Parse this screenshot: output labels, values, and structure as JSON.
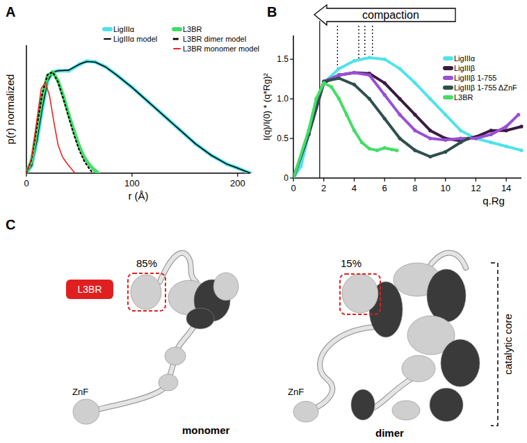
{
  "chart_data": [
    {
      "type": "line",
      "panel": "A",
      "xlabel": "r (Å)",
      "ylabel": "p(r) normalized",
      "xlim": [
        0,
        212
      ],
      "ylim": [
        0,
        1
      ],
      "xticks": [
        0,
        100,
        200
      ],
      "tick_labels": "x",
      "legend": "upper right",
      "series": [
        {
          "name": "LigIIIα",
          "color": "#4fe3ea",
          "marker": "circle",
          "x": [
            0,
            5,
            10,
            15,
            20,
            25,
            30,
            40,
            50,
            57,
            65,
            75,
            85,
            100,
            115,
            130,
            145,
            160,
            175,
            190,
            200,
            212
          ],
          "values": [
            0,
            0.06,
            0.25,
            0.5,
            0.72,
            0.79,
            0.8,
            0.8,
            0.85,
            0.875,
            0.87,
            0.83,
            0.77,
            0.67,
            0.56,
            0.45,
            0.34,
            0.23,
            0.14,
            0.07,
            0.04,
            0
          ]
        },
        {
          "name": "LigIIIα model",
          "color": "#000000",
          "line_style": "solid",
          "x": [
            0,
            5,
            10,
            15,
            20,
            25,
            30,
            40,
            50,
            57,
            65,
            75,
            85,
            100,
            115,
            130,
            145,
            160,
            175,
            190,
            200,
            212
          ],
          "values": [
            0,
            0.06,
            0.26,
            0.51,
            0.72,
            0.79,
            0.8,
            0.805,
            0.85,
            0.872,
            0.868,
            0.83,
            0.77,
            0.67,
            0.56,
            0.45,
            0.34,
            0.23,
            0.14,
            0.07,
            0.04,
            0
          ]
        },
        {
          "name": "L3BR",
          "color": "#44dd66",
          "marker": "circle",
          "x": [
            0,
            5,
            10,
            15,
            20,
            25,
            30,
            35,
            40,
            45,
            50,
            55,
            60,
            65,
            68
          ],
          "values": [
            0,
            0.1,
            0.35,
            0.6,
            0.76,
            0.79,
            0.72,
            0.6,
            0.46,
            0.33,
            0.21,
            0.12,
            0.06,
            0.02,
            0
          ]
        },
        {
          "name": "L3BR dimer model",
          "color": "#000000",
          "line_style": "dotted",
          "x": [
            0,
            5,
            10,
            15,
            20,
            25,
            30,
            35,
            40,
            45,
            50,
            55,
            60,
            63
          ],
          "values": [
            0,
            0.11,
            0.37,
            0.62,
            0.77,
            0.79,
            0.71,
            0.58,
            0.44,
            0.3,
            0.18,
            0.09,
            0.03,
            0
          ]
        },
        {
          "name": "L3BR monomer model",
          "color": "#ee2222",
          "line_style": "solid",
          "x": [
            0,
            5,
            10,
            14,
            18,
            22,
            26,
            30,
            34,
            38,
            42,
            46
          ],
          "values": [
            0,
            0.12,
            0.42,
            0.66,
            0.71,
            0.6,
            0.4,
            0.22,
            0.13,
            0.08,
            0.04,
            0
          ]
        }
      ]
    },
    {
      "type": "line",
      "panel": "B",
      "xlabel": "q.Rg",
      "ylabel": "I(q)/I(0) * (q*Rg)²",
      "xlim": [
        0,
        15
      ],
      "ylim": [
        0,
        1.8
      ],
      "xticks": [
        0,
        2,
        4,
        6,
        8,
        10,
        12,
        14
      ],
      "yticks": [
        0,
        0.5,
        {
          "value": 1,
          "label": "1.0"
        },
        1.5
      ],
      "legend": "upper right",
      "annotation": "compaction",
      "reference_x": 1.73,
      "peak_x": [
        2.9,
        4.3,
        4.7,
        5.2
      ],
      "series": [
        {
          "name": "LigIIIα",
          "color": "#4fe3ea",
          "marker": "circle",
          "x": [
            0,
            0.5,
            1,
            1.5,
            2,
            3,
            4,
            5,
            6,
            7,
            8,
            9,
            10,
            11,
            12,
            13,
            14,
            15
          ],
          "values": [
            0,
            0.15,
            0.55,
            0.95,
            1.2,
            1.38,
            1.48,
            1.52,
            1.5,
            1.38,
            1.2,
            1,
            0.8,
            0.6,
            0.5,
            0.45,
            0.4,
            0.35
          ]
        },
        {
          "name": "LigIIIβ",
          "color": "#3b1a40",
          "marker": "circle",
          "x": [
            0,
            1,
            2,
            3,
            4,
            5,
            6,
            7,
            8,
            9,
            10,
            11,
            12,
            13,
            14,
            15
          ],
          "values": [
            0,
            0.55,
            1.2,
            1.3,
            1.33,
            1.32,
            1.2,
            1,
            0.8,
            0.6,
            0.5,
            0.47,
            0.52,
            0.6,
            0.6,
            0.65
          ]
        },
        {
          "name": "LigIIIβ 1-755",
          "color": "#9a4fd6",
          "marker": "circle",
          "x": [
            0,
            1,
            2,
            3,
            4,
            5,
            6,
            7,
            8,
            9,
            10,
            11,
            12,
            13,
            14,
            14.8
          ],
          "values": [
            0,
            0.55,
            1.22,
            1.3,
            1.33,
            1.3,
            1.05,
            0.8,
            0.6,
            0.5,
            0.48,
            0.5,
            0.5,
            0.55,
            0.65,
            0.8
          ]
        },
        {
          "name": "LigIIIβ 1-755 ΔZnF",
          "color": "#2f4f4f",
          "marker": "circle",
          "x": [
            0,
            1,
            2,
            3,
            4,
            5,
            6,
            7,
            8,
            9,
            10,
            11,
            11.5
          ],
          "values": [
            0,
            0.55,
            1.22,
            1.26,
            1.18,
            1,
            0.75,
            0.5,
            0.35,
            0.27,
            0.33,
            0.45,
            0.5
          ]
        },
        {
          "name": "L3BR",
          "color": "#44dd66",
          "marker": "circle",
          "x": [
            0,
            1,
            1.5,
            2,
            2.5,
            3,
            3.5,
            4,
            4.5,
            5,
            5.5,
            6,
            6.5,
            6.8
          ],
          "values": [
            0,
            0.6,
            1,
            1.2,
            1.15,
            1,
            0.8,
            0.6,
            0.45,
            0.37,
            0.35,
            0.38,
            0.36,
            0.35
          ]
        }
      ]
    }
  ],
  "panel_c": {
    "panel": "C",
    "structures": [
      {
        "fraction": "85%",
        "state": "monomer",
        "domain_label": "L3BR",
        "znf_label": "ZnF"
      },
      {
        "fraction": "15%",
        "state": "dimer",
        "znf_label": "ZnF",
        "core_label": "catalytic core"
      }
    ]
  }
}
